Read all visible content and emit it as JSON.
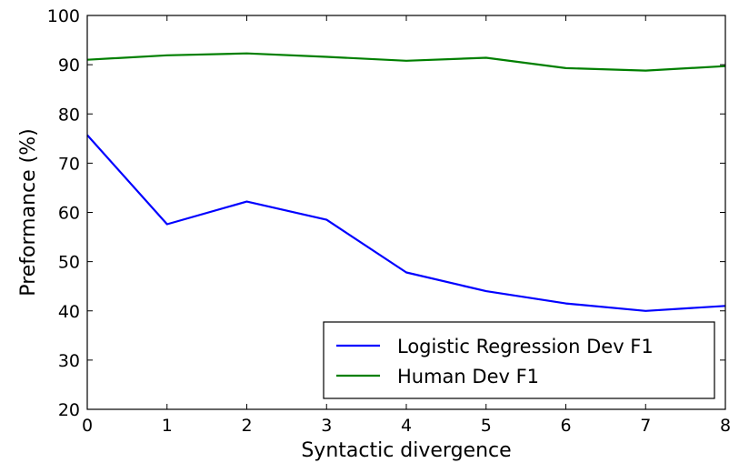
{
  "chart_data": {
    "type": "line",
    "title": "",
    "xlabel": "Syntactic divergence",
    "ylabel": "Preformance (%)",
    "x": [
      0,
      1,
      2,
      3,
      4,
      5,
      6,
      7,
      8
    ],
    "xlim": [
      0,
      8
    ],
    "ylim": [
      20,
      100
    ],
    "xticks": [
      "0",
      "1",
      "2",
      "3",
      "4",
      "5",
      "6",
      "7",
      "8"
    ],
    "yticks": [
      "20",
      "30",
      "40",
      "50",
      "60",
      "70",
      "80",
      "90",
      "100"
    ],
    "grid": false,
    "legend_position": "lower-right",
    "series": [
      {
        "name": "Logistic Regression Dev F1",
        "color": "#0000ff",
        "values": [
          75.7,
          57.6,
          62.2,
          58.5,
          47.8,
          44.0,
          41.5,
          40.0,
          41.0
        ]
      },
      {
        "name": "Human Dev F1",
        "color": "#007f00",
        "values": [
          91.0,
          91.9,
          92.3,
          91.6,
          90.8,
          91.4,
          89.3,
          88.8,
          89.7
        ]
      }
    ]
  }
}
